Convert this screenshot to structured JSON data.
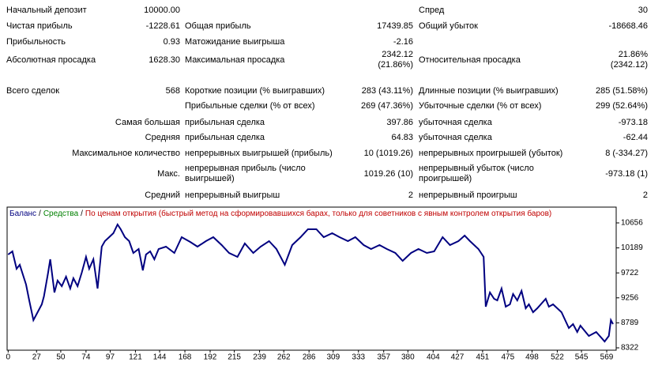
{
  "report": {
    "rows": [
      {
        "c1": {
          "label": "Начальный депозит",
          "value": "10000.00"
        },
        "c3": {
          "label": "Спред",
          "value": "30"
        }
      },
      {
        "c1": {
          "label": "Чистая прибыль",
          "value": "-1228.61"
        },
        "c2": {
          "label": "Общая прибыль",
          "value": "17439.85"
        },
        "c3": {
          "label": "Общий убыток",
          "value": "-18668.46"
        }
      },
      {
        "c1": {
          "label": "Прибыльность",
          "value": "0.93"
        },
        "c2": {
          "label": "Матожидание выигрыша",
          "value": "-2.16"
        }
      },
      {
        "c1": {
          "label": "Абсолютная просадка",
          "value": "1628.30"
        },
        "c2": {
          "label": "Максимальная просадка",
          "value": [
            "2342.12",
            "(21.86%)"
          ]
        },
        "c3": {
          "label": "Относительная просадка",
          "value": [
            "21.86%",
            "(2342.12)"
          ]
        }
      },
      {
        "c1": {
          "label": "Всего сделок",
          "value": "568"
        },
        "c2": {
          "label": "Короткие позиции (% выигравших)",
          "value": "283 (43.11%)"
        },
        "c3": {
          "label": "Длинные позиции (% выигравших)",
          "value": "285 (51.58%)"
        }
      },
      {
        "c2": {
          "label": "Прибыльные сделки (% от всех)",
          "value": "269 (47.36%)"
        },
        "c3": {
          "label": "Убыточные сделки (% от всех)",
          "value": "299 (52.64%)"
        }
      },
      {
        "c1": {
          "label": "Самая большая"
        },
        "c2": {
          "label": "прибыльная сделка",
          "value": "397.86"
        },
        "c3": {
          "label": "убыточная сделка",
          "value": "-973.18"
        }
      },
      {
        "c1": {
          "label": "Средняя"
        },
        "c2": {
          "label": "прибыльная сделка",
          "value": "64.83"
        },
        "c3": {
          "label": "убыточная сделка",
          "value": "-62.44"
        }
      },
      {
        "c1": {
          "label": "Максимальное количество"
        },
        "c2": {
          "label": "непрерывных выигрышей (прибыль)",
          "value": "10 (1019.26)"
        },
        "c3": {
          "label": "непрерывных проигрышей (убыток)",
          "value": "8 (-334.27)"
        }
      },
      {
        "c1": {
          "label": "Макс."
        },
        "c2": {
          "label": [
            "непрерывная прибыль (число",
            "выигрышей)"
          ],
          "value": "1019.26 (10)"
        },
        "c3": {
          "label": [
            "непрерывный убыток (число",
            "проигрышей)"
          ],
          "value": "-973.18 (1)"
        }
      },
      {
        "c1": {
          "label": "Средний"
        },
        "c2": {
          "label": "непрерывный выигрыш",
          "value": "2"
        },
        "c3": {
          "label": "непрерывный проигрыш",
          "value": "2"
        }
      }
    ]
  },
  "chart_data": {
    "type": "line",
    "legend_separator": "/",
    "legend_extra": [
      {
        "text": "Средства",
        "color": "#008000"
      },
      {
        "text": "По ценам открытия (быстрый метод на сформировавшихся барах, только для советников с явным контролем открытия баров)",
        "color": "#c00000"
      }
    ],
    "x": [
      0,
      4,
      8,
      11,
      17,
      20,
      24,
      28,
      32,
      34,
      38,
      40,
      44,
      47,
      51,
      55,
      59,
      62,
      66,
      70,
      74,
      77,
      81,
      85,
      89,
      92,
      96,
      100,
      104,
      107,
      111,
      115,
      119,
      124,
      128,
      131,
      135,
      139,
      143,
      150,
      158,
      165,
      173,
      180,
      188,
      195,
      203,
      210,
      218,
      225,
      233,
      240,
      248,
      255,
      263,
      270,
      278,
      285,
      293,
      300,
      308,
      315,
      323,
      330,
      338,
      345,
      353,
      360,
      368,
      375,
      383,
      390,
      398,
      405,
      413,
      420,
      428,
      434,
      439,
      447,
      452,
      454,
      458,
      462,
      465,
      469,
      473,
      477,
      480,
      484,
      488,
      492,
      495,
      499,
      503,
      511,
      514,
      518,
      526,
      533,
      537,
      541,
      544,
      552,
      559,
      567,
      571,
      573,
      575
    ],
    "series": [
      {
        "name": "Баланс",
        "color": "#000080",
        "values": [
          10065,
          10124,
          9799,
          9873,
          9504,
          9209,
          8839,
          8987,
          9135,
          9282,
          9726,
          9977,
          9356,
          9578,
          9474,
          9652,
          9430,
          9622,
          9474,
          9726,
          10021,
          9799,
          9977,
          9430,
          10213,
          10316,
          10390,
          10464,
          10626,
          10538,
          10390,
          10316,
          10095,
          10169,
          9770,
          10065,
          10124,
          9977,
          10169,
          10213,
          10095,
          10390,
          10301,
          10213,
          10316,
          10390,
          10242,
          10095,
          10021,
          10272,
          10095,
          10213,
          10316,
          10169,
          9873,
          10242,
          10390,
          10538,
          10538,
          10390,
          10464,
          10390,
          10316,
          10390,
          10242,
          10169,
          10242,
          10169,
          10095,
          9947,
          10095,
          10169,
          10095,
          10124,
          10390,
          10242,
          10316,
          10420,
          10316,
          10169,
          10021,
          9090,
          9356,
          9238,
          9209,
          9430,
          9090,
          9135,
          9327,
          9209,
          9386,
          9061,
          9135,
          8987,
          9061,
          9238,
          9090,
          9135,
          8987,
          8692,
          8766,
          8618,
          8736,
          8544,
          8618,
          8440,
          8544,
          8839,
          8766
        ]
      }
    ],
    "xlim": [
      -1,
      578
    ],
    "ylim": [
      8278,
      10951
    ],
    "xticks": [
      0,
      27,
      50,
      74,
      97,
      121,
      144,
      168,
      192,
      215,
      239,
      262,
      286,
      309,
      333,
      357,
      380,
      404,
      427,
      451,
      475,
      498,
      522,
      545,
      569
    ],
    "yticks": [
      8322,
      8789,
      9256,
      9722,
      10189,
      10656
    ],
    "grid": false
  }
}
